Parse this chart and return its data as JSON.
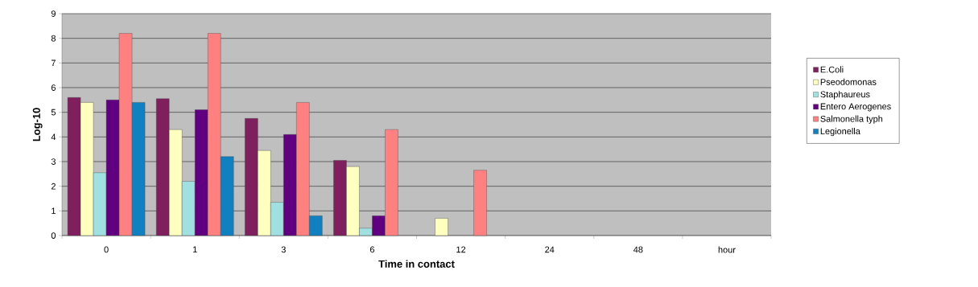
{
  "chart_data": {
    "type": "bar",
    "xlabel": "Time in contact",
    "ylabel": "Log-10",
    "categories": [
      "0",
      "1",
      "3",
      "6",
      "12",
      "24",
      "48",
      "hour"
    ],
    "series": [
      {
        "name": "E.Coli",
        "color": "#7f1f5e",
        "values": [
          5.6,
          5.55,
          4.75,
          3.05,
          null,
          null,
          null,
          null
        ]
      },
      {
        "name": "Pseodomonas",
        "color": "#ffffc0",
        "values": [
          5.4,
          4.3,
          3.45,
          2.8,
          0.7,
          null,
          null,
          null
        ]
      },
      {
        "name": "Staphaureus",
        "color": "#a0e0e0",
        "values": [
          2.55,
          2.2,
          1.35,
          0.3,
          null,
          null,
          null,
          null
        ]
      },
      {
        "name": "Entero Aerogenes",
        "color": "#600080",
        "values": [
          5.5,
          5.1,
          4.1,
          0.8,
          null,
          null,
          null,
          null
        ]
      },
      {
        "name": "Salmonella typh",
        "color": "#ff8080",
        "values": [
          8.2,
          8.2,
          5.4,
          4.3,
          2.65,
          null,
          null,
          null
        ]
      },
      {
        "name": "Legionella",
        "color": "#1080c0",
        "values": [
          5.4,
          3.2,
          0.8,
          null,
          null,
          null,
          null,
          null
        ]
      }
    ],
    "ylim": [
      0,
      9
    ],
    "yticks": [
      0,
      1,
      2,
      3,
      4,
      5,
      6,
      7,
      8,
      9
    ],
    "grid": "y",
    "legend": "right"
  }
}
